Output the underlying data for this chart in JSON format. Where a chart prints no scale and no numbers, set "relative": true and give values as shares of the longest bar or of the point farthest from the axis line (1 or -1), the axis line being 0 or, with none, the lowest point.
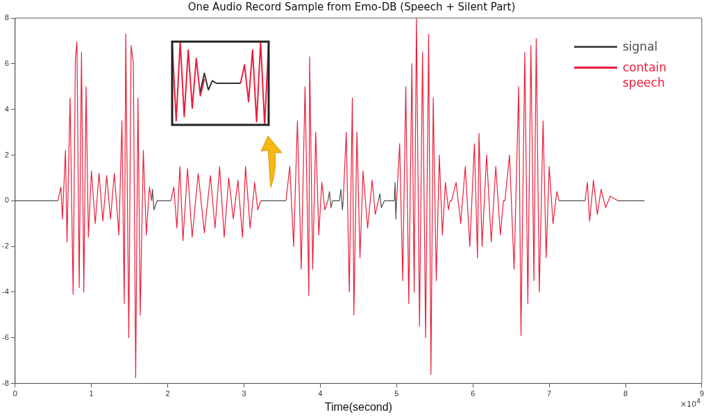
{
  "chart_data": [
    {
      "type": "line",
      "title": "One Audio Record Sample from Emo-DB (Speech + Silent Part)",
      "xlabel": "Time(second)",
      "xlim": [
        0,
        9
      ],
      "xticks": [
        0,
        1,
        2,
        3,
        4,
        5,
        6,
        7,
        8,
        9
      ],
      "ylim": [
        -8,
        8
      ],
      "yticks": [
        -8,
        -6,
        -4,
        -2,
        0,
        2,
        4,
        6,
        8
      ],
      "grid": false,
      "legend": "top right",
      "marker": "none",
      "line_style": "solid",
      "annotations": [
        "×10$^{4}$"
      ],
      "series": [
        {
          "name": "signal",
          "color": "#4d4d4d",
          "x": [
            0,
            0.56,
            1.0,
            1.79,
            1.8,
            1.82,
            1.86,
            2.04,
            2.5,
            3.22,
            3.55,
            3.8,
            4.1,
            4.12,
            4.14,
            4.16,
            4.25,
            4.27,
            4.29,
            4.3,
            4.5,
            4.76,
            4.78,
            4.8,
            4.84,
            4.97,
            4.98,
            4.99,
            5.0,
            6.0,
            7.13,
            7.47,
            7.6,
            7.9,
            8.25
          ],
          "values": [
            0,
            0,
            null,
            0,
            0.5,
            -0.4,
            0,
            0,
            null,
            0,
            0,
            null,
            0,
            0.4,
            -0.3,
            0,
            0,
            0.5,
            -0.4,
            0,
            null,
            0,
            0.3,
            -0.3,
            0,
            0,
            0.8,
            -0.8,
            0,
            null,
            0,
            0,
            null,
            0,
            0
          ]
        },
        {
          "name": "contain speech",
          "color": "#ec1c3a",
          "x": [
            0.56,
            0.6,
            0.62,
            0.66,
            0.68,
            0.72,
            0.76,
            0.79,
            0.81,
            0.84,
            0.87,
            0.9,
            0.93,
            0.96,
            1.0,
            1.05,
            1.1,
            1.15,
            1.2,
            1.25,
            1.3,
            1.36,
            1.4,
            1.43,
            1.45,
            1.49,
            1.52,
            1.55,
            1.58,
            1.61,
            1.64,
            1.68,
            1.72,
            1.76,
            1.79,
            1.9,
            2.04,
            2.08,
            2.12,
            2.16,
            2.2,
            2.26,
            2.32,
            2.4,
            2.48,
            2.56,
            2.62,
            2.68,
            2.74,
            2.8,
            2.86,
            2.92,
            2.98,
            3.02,
            3.08,
            3.14,
            3.18,
            3.22,
            3.4,
            3.55,
            3.6,
            3.65,
            3.7,
            3.75,
            3.8,
            3.85,
            3.86,
            3.9,
            3.94,
            3.98,
            4.02,
            4.06,
            4.1,
            4.2,
            4.3,
            4.34,
            4.38,
            4.42,
            4.44,
            4.48,
            4.52,
            4.56,
            4.62,
            4.68,
            4.72,
            4.76,
            4.9,
            5.0,
            5.04,
            5.08,
            5.12,
            5.16,
            5.2,
            5.23,
            5.26,
            5.3,
            5.34,
            5.38,
            5.42,
            5.45,
            5.48,
            5.52,
            5.56,
            5.6,
            5.64,
            5.68,
            5.7,
            5.72,
            5.78,
            5.84,
            5.9,
            5.96,
            6.02,
            6.06,
            6.08,
            6.12,
            6.18,
            6.24,
            6.3,
            6.36,
            6.4,
            6.42,
            6.48,
            6.54,
            6.6,
            6.63,
            6.68,
            6.72,
            6.76,
            6.8,
            6.83,
            6.87,
            6.92,
            6.96,
            7.0,
            7.05,
            7.1,
            7.13,
            7.3,
            7.47,
            7.5,
            7.53,
            7.58,
            7.63,
            7.68,
            7.74,
            7.8,
            7.9
          ],
          "values": [
            0,
            0.6,
            -0.8,
            2.2,
            -1.8,
            4.5,
            -4.1,
            6.2,
            6.95,
            -3.8,
            6.5,
            -4.0,
            5.0,
            -1.6,
            1.3,
            -1.0,
            1.2,
            -0.9,
            1.1,
            -0.8,
            1.2,
            -1.5,
            3.5,
            -4.5,
            7.3,
            -6.0,
            6.8,
            6.0,
            -7.75,
            4.5,
            -5.0,
            2.2,
            -1.5,
            0.6,
            0,
            null,
            0,
            0.6,
            -1.2,
            1.5,
            -1.75,
            1.4,
            -1.6,
            1.2,
            -1.4,
            1.1,
            -1.2,
            1.5,
            -1.6,
            1.0,
            -0.8,
            0.9,
            -1.6,
            1.5,
            -1.2,
            0.8,
            -0.4,
            0,
            null,
            0,
            1.5,
            -2.0,
            3.5,
            -3.0,
            5.0,
            -4.15,
            6.3,
            -3.0,
            3.0,
            -1.5,
            0.8,
            -0.4,
            0,
            null,
            0,
            3.0,
            -4.0,
            4.5,
            -5.0,
            3.0,
            -2.5,
            1.3,
            -1.2,
            0.9,
            -0.6,
            0,
            null,
            0,
            2.5,
            -3.5,
            5.0,
            -4.5,
            6.0,
            -4.0,
            8.0,
            -5.5,
            6.5,
            -6.0,
            7.3,
            -7.6,
            4.5,
            -3.5,
            2.0,
            -1.5,
            0.8,
            -0.4,
            0,
            0,
            0.8,
            -1.0,
            1.5,
            -2.0,
            2.5,
            -2.5,
            2.95,
            -2.0,
            2.0,
            -1.8,
            1.5,
            -1.5,
            0,
            0,
            2.0,
            -3.0,
            5.0,
            -5.9,
            6.5,
            -4.5,
            6.8,
            -3.5,
            7.1,
            -4.0,
            3.5,
            -2.5,
            1.5,
            -1.0,
            0.4,
            0,
            null,
            0,
            0.8,
            -0.9,
            0.9,
            -0.6,
            0.5,
            -0.3,
            0.2,
            0
          ]
        }
      ]
    },
    {
      "type": "line",
      "relative": true,
      "tick_labels": false,
      "marker": "none",
      "categories": [
        null,
        null,
        null,
        null,
        null,
        null,
        null,
        null,
        null,
        null,
        null,
        null,
        null,
        null,
        null,
        null,
        null,
        null,
        null,
        null,
        null,
        null,
        null,
        null,
        null
      ],
      "series": [
        {
          "color": "#333333",
          "values": [
            null,
            null,
            null,
            null,
            null,
            null,
            null,
            0.4,
            0.62,
            0.42,
            0.53,
            0.5,
            0.5,
            0.5,
            0.5,
            0.5,
            0.5,
            0.5,
            null,
            null,
            null,
            null,
            null,
            null,
            null
          ]
        },
        {
          "color": "#ec1c3a",
          "values": [
            0.98,
            0.05,
            1,
            0.1,
            0.9,
            0.2,
            0.8,
            0.35,
            0.55,
            null,
            null,
            null,
            null,
            null,
            null,
            null,
            null,
            0.5,
            0.72,
            0.28,
            0.9,
            0.04,
            1,
            0,
            0.98
          ]
        }
      ]
    }
  ]
}
